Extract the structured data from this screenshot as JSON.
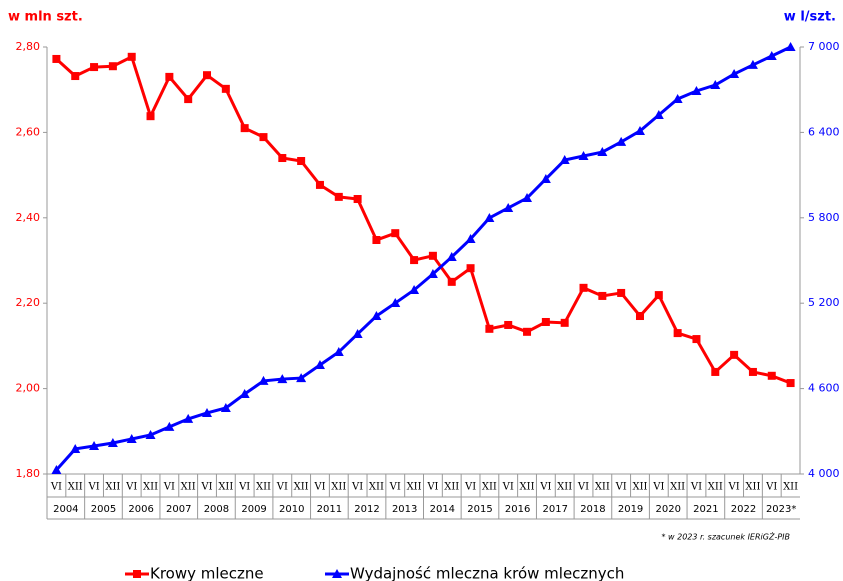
{
  "chart_data": {
    "type": "line",
    "y_label": "w mln szt.",
    "y2_label": "w l/szt.",
    "note": "* w 2023 r. szacunek IERiGŻ-PIB",
    "categories": [
      "VI",
      "XII",
      "VI",
      "XII",
      "VI",
      "XII",
      "VI",
      "XII",
      "VI",
      "XII",
      "VI",
      "XII",
      "VI",
      "XII",
      "VI",
      "XII",
      "VI",
      "XII",
      "VI",
      "XII",
      "VI",
      "XII",
      "VI",
      "XII",
      "VI",
      "XII",
      "VI",
      "XII",
      "VI",
      "XII",
      "VI",
      "XII",
      "VI",
      "XII",
      "VI",
      "XII",
      "VI",
      "XII",
      "VI",
      "XII"
    ],
    "groups": [
      "2004",
      "2005",
      "2006",
      "2007",
      "2008",
      "2009",
      "2010",
      "2011",
      "2012",
      "2013",
      "2014",
      "2015",
      "2016",
      "2017",
      "2018",
      "2019",
      "2020",
      "2021",
      "2022",
      "2023*"
    ],
    "series": [
      {
        "name": "Krowy mleczne",
        "color": "#ff0000",
        "marker": "square",
        "values": [
          2.772,
          2.732,
          2.753,
          2.755,
          2.777,
          2.638,
          2.73,
          2.678,
          2.734,
          2.702,
          2.61,
          2.589,
          2.54,
          2.533,
          2.477,
          2.449,
          2.444,
          2.348,
          2.364,
          2.301,
          2.311,
          2.25,
          2.282,
          2.14,
          2.149,
          2.133,
          2.156,
          2.154,
          2.236,
          2.217,
          2.224,
          2.17,
          2.219,
          2.13,
          2.116,
          2.039,
          2.079,
          2.039,
          2.03,
          2.013
        ]
      },
      {
        "name": "Wydajność mleczna krów mlecznych",
        "color": "#0000ff",
        "marker": "triangle",
        "axis": "y2",
        "values": [
          4028,
          4176,
          4197,
          4218,
          4246,
          4274,
          4331,
          4387,
          4429,
          4464,
          4562,
          4654,
          4667,
          4674,
          4766,
          4857,
          4984,
          5110,
          5201,
          5293,
          5405,
          5525,
          5651,
          5799,
          5869,
          5939,
          6073,
          6206,
          6234,
          6262,
          6333,
          6410,
          6522,
          6635,
          6691,
          6733,
          6810,
          6874,
          6937,
          7000
        ]
      }
    ],
    "ylim": [
      1.8,
      2.8
    ],
    "yticks": [
      {
        "value": 1.8,
        "label": "1,80"
      },
      {
        "value": 2.0,
        "label": "2,00"
      },
      {
        "value": 2.2,
        "label": "2,20"
      },
      {
        "value": 2.4,
        "label": "2,40"
      },
      {
        "value": 2.6,
        "label": "2,60"
      },
      {
        "value": 2.8,
        "label": "2,80"
      }
    ],
    "y2lim": [
      4000,
      7000
    ],
    "y2ticks": [
      {
        "value": 4000,
        "label": "4 000"
      },
      {
        "value": 4600,
        "label": "4 600"
      },
      {
        "value": 5200,
        "label": "5 200"
      },
      {
        "value": 5800,
        "label": "5 800"
      },
      {
        "value": 6400,
        "label": "6 400"
      },
      {
        "value": 7000,
        "label": "7 000"
      }
    ],
    "grid": false
  }
}
